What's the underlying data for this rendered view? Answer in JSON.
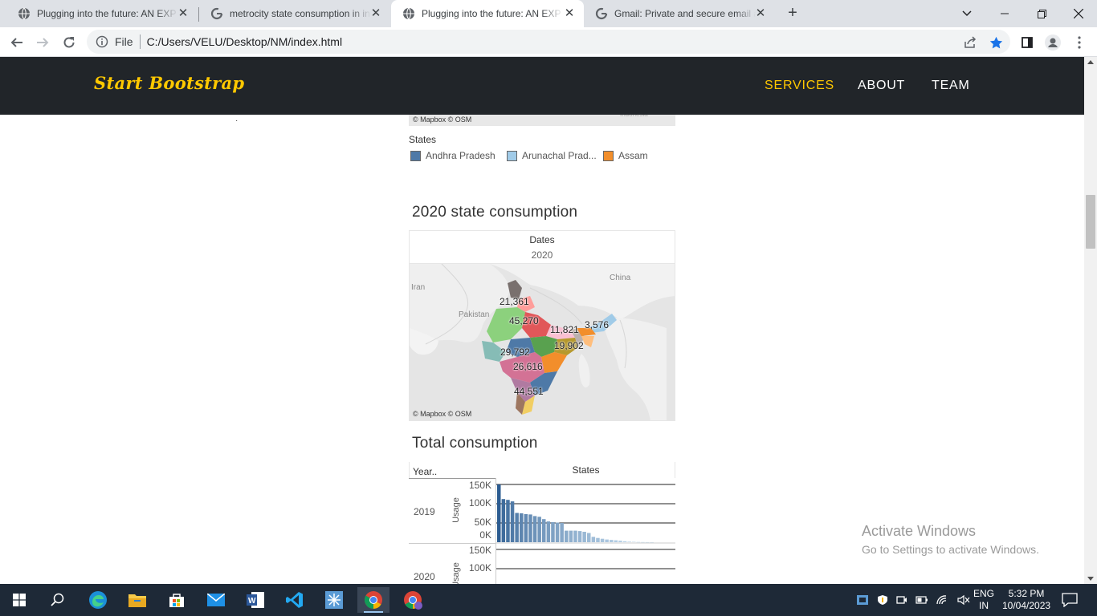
{
  "browser": {
    "tabs": [
      {
        "title": "Plugging into the future: AN EXP",
        "active": false,
        "favicon": "globe-icon"
      },
      {
        "title": "metrocity state consumption in in",
        "active": false,
        "favicon": "google-icon"
      },
      {
        "title": "Plugging into the future: AN EXP",
        "active": true,
        "favicon": "globe-icon"
      },
      {
        "title": "Gmail: Private and secure email a",
        "active": false,
        "favicon": "google-icon"
      }
    ],
    "address": {
      "scheme": "File",
      "url": "C:/Users/VELU/Desktop/NM/index.html"
    }
  },
  "site": {
    "brand": "Start Bootstrap",
    "nav": [
      "SERVICES",
      "ABOUT",
      "TEAM"
    ],
    "accent": "#ffc800",
    "nav_bg": "#212529"
  },
  "map1": {
    "credit": "© Mapbox  © OSM",
    "legend_title": "States",
    "legend": [
      {
        "label": "Andhra Pradesh",
        "color": "#4e79a7"
      },
      {
        "label": "Arunachal Prad...",
        "color": "#a0cbe8"
      },
      {
        "label": "Assam",
        "color": "#f28e2b"
      }
    ],
    "corner_text": "Indonesia"
  },
  "map2": {
    "title": "2020 state consumption",
    "filter_label": "Dates",
    "filter_value": "2020",
    "credit": "© Mapbox  © OSM",
    "places": [
      "Iran",
      "China",
      "Pakistan"
    ],
    "labels": [
      "21,361",
      "45,270",
      "11,821",
      "3,576",
      "19,902",
      "29,792",
      "26,616",
      "44,551"
    ]
  },
  "total": {
    "title": "Total consumption",
    "row_header": "Year..",
    "col_header": "States",
    "years": [
      "2019",
      "2020"
    ],
    "measure": "Usage",
    "ticks_2019": [
      "150K",
      "100K",
      "50K",
      "0K"
    ],
    "ticks_2020": [
      "150K",
      "100K"
    ]
  },
  "chart_data": {
    "type": "bar",
    "title": "Total consumption",
    "xlabel": "States",
    "ylabel": "Usage",
    "ylim": [
      0,
      150000
    ],
    "series": [
      {
        "name": "2019",
        "values": [
          150000,
          112000,
          110000,
          106000,
          76000,
          75000,
          73000,
          72000,
          68000,
          66000,
          60000,
          54000,
          52000,
          51000,
          50000,
          30000,
          30000,
          30000,
          29000,
          27000,
          24000,
          14000,
          11000,
          9000,
          7000,
          6000,
          5000,
          4000,
          2500,
          1500,
          1000,
          700,
          500,
          300,
          200
        ]
      }
    ]
  },
  "windows": {
    "watermark_title": "Activate Windows",
    "watermark_sub": "Go to Settings to activate Windows.",
    "lang1": "ENG",
    "lang2": "IN",
    "time": "5:32 PM",
    "date": "10/04/2023"
  }
}
